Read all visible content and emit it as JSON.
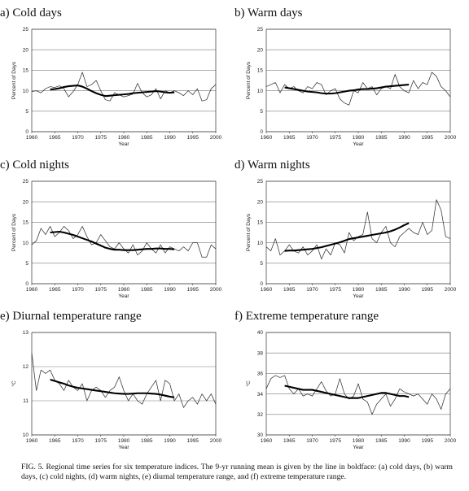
{
  "caption": "FIG. 5. Regional time series for six temperature indices. The 9-yr running mean is given by the line in boldface: (a) cold days, (b) warm days, (c) cold nights, (d) warm nights, (e) diurnal temperature range, and (f) extreme temperature range.",
  "chart_data": [
    {
      "type": "line",
      "title": "a) Cold days",
      "xlabel": "Year",
      "ylabel": "Percent of Days",
      "xlim": [
        1960,
        2000
      ],
      "ylim": [
        0,
        25
      ],
      "xticks": [
        "1960",
        "1965",
        "1970",
        "1975",
        "1980",
        "1985",
        "1990",
        "1995",
        "2000"
      ],
      "yticks": [
        "0",
        "5",
        "10",
        "15",
        "20",
        "25"
      ],
      "grid": true,
      "x_start": 1960,
      "series": [
        {
          "values": [
            9.8,
            10.0,
            9.5,
            10.5,
            11.0,
            10.8,
            11.2,
            10.5,
            8.5,
            9.8,
            11.5,
            14.5,
            11.0,
            11.5,
            12.5,
            10.0,
            7.8,
            7.5,
            9.5,
            9.0,
            8.5,
            8.8,
            9.2,
            11.8,
            9.5,
            8.5,
            9.0,
            10.5,
            8.0,
            10.0,
            9.5,
            10.0,
            9.5,
            8.8,
            10.0,
            9.0,
            10.5,
            7.5,
            7.8,
            10.5,
            11.5
          ]
        },
        {
          "x_start": 1964,
          "values": [
            10.3,
            10.4,
            10.6,
            10.9,
            11.1,
            11.2,
            11.3,
            11.0,
            10.5,
            9.9,
            9.4,
            9.0,
            8.7,
            8.8,
            8.9,
            9.0,
            9.1,
            9.2,
            9.4,
            9.5,
            9.6,
            9.7,
            9.8,
            9.9,
            9.8,
            9.6,
            9.5,
            9.6
          ]
        }
      ]
    },
    {
      "type": "line",
      "title": "b) Warm days",
      "xlabel": "Year",
      "ylabel": "Percent of Days",
      "xlim": [
        1960,
        2000
      ],
      "ylim": [
        0,
        25
      ],
      "xticks": [
        "1960",
        "1965",
        "1970",
        "1975",
        "1980",
        "1985",
        "1990",
        "1995",
        "2000"
      ],
      "yticks": [
        "0",
        "5",
        "10",
        "15",
        "20",
        "25"
      ],
      "grid": true,
      "x_start": 1960,
      "series": [
        {
          "values": [
            11.0,
            11.5,
            12.0,
            9.5,
            11.5,
            10.5,
            11.0,
            10.0,
            9.5,
            11.0,
            10.5,
            12.0,
            11.5,
            9.0,
            10.0,
            10.5,
            8.0,
            7.0,
            6.5,
            10.0,
            9.5,
            12.0,
            10.5,
            11.0,
            9.0,
            10.5,
            11.0,
            10.5,
            14.0,
            11.0,
            10.0,
            9.5,
            12.5,
            10.5,
            12.0,
            11.5,
            14.5,
            13.5,
            11.0,
            10.0,
            8.5
          ]
        },
        {
          "x_start": 1964,
          "values": [
            10.8,
            10.6,
            10.4,
            10.2,
            10.0,
            9.8,
            9.7,
            9.6,
            9.4,
            9.3,
            9.3,
            9.4,
            9.6,
            9.8,
            10.0,
            10.1,
            10.3,
            10.4,
            10.4,
            10.5,
            10.6,
            10.8,
            11.0,
            11.1,
            11.2,
            11.3,
            11.4,
            11.5
          ]
        }
      ]
    },
    {
      "type": "line",
      "title": "c) Cold nights",
      "xlabel": "Year",
      "ylabel": "Percent of Days",
      "xlim": [
        1960,
        2000
      ],
      "ylim": [
        0,
        25
      ],
      "xticks": [
        "1960",
        "1965",
        "1970",
        "1975",
        "1980",
        "1985",
        "1990",
        "1995",
        "2000"
      ],
      "yticks": [
        "0",
        "5",
        "10",
        "15",
        "20",
        "25"
      ],
      "grid": true,
      "x_start": 1960,
      "series": [
        {
          "values": [
            9.5,
            10.5,
            13.5,
            12.0,
            14.0,
            11.5,
            12.5,
            14.0,
            13.0,
            11.0,
            12.0,
            14.0,
            11.5,
            9.5,
            10.0,
            12.0,
            10.5,
            9.0,
            8.5,
            10.0,
            8.5,
            7.5,
            9.5,
            7.0,
            8.0,
            10.0,
            8.5,
            7.5,
            9.5,
            7.5,
            9.0,
            8.5,
            8.0,
            9.0,
            8.0,
            10.0,
            10.0,
            6.5,
            6.5,
            9.5,
            8.5
          ]
        },
        {
          "x_start": 1964,
          "values": [
            12.5,
            12.6,
            12.7,
            12.5,
            12.2,
            11.9,
            11.5,
            11.1,
            10.7,
            10.3,
            9.8,
            9.3,
            8.8,
            8.5,
            8.3,
            8.3,
            8.2,
            8.2,
            8.2,
            8.3,
            8.4,
            8.5,
            8.5,
            8.6,
            8.6,
            8.5,
            8.5,
            8.4
          ]
        }
      ]
    },
    {
      "type": "line",
      "title": "d) Warm nights",
      "xlabel": "Year",
      "ylabel": "Percent of Days",
      "xlim": [
        1960,
        2000
      ],
      "ylim": [
        0,
        25
      ],
      "xticks": [
        "1960",
        "1965",
        "1970",
        "1975",
        "1980",
        "1985",
        "1990",
        "1995",
        "2000"
      ],
      "yticks": [
        "0",
        "5",
        "10",
        "15",
        "20",
        "25"
      ],
      "grid": true,
      "x_start": 1960,
      "series": [
        {
          "values": [
            9.0,
            8.0,
            11.0,
            7.0,
            8.0,
            9.5,
            8.0,
            7.5,
            9.0,
            7.0,
            8.0,
            9.5,
            6.0,
            8.5,
            7.0,
            10.0,
            9.5,
            7.5,
            12.5,
            10.5,
            11.5,
            12.0,
            17.5,
            11.0,
            10.0,
            12.5,
            14.0,
            10.0,
            9.0,
            11.5,
            12.5,
            13.5,
            12.5,
            12.0,
            15.0,
            12.0,
            13.0,
            20.5,
            18.0,
            11.5,
            11.0
          ]
        },
        {
          "x_start": 1964,
          "values": [
            8.0,
            8.1,
            8.1,
            8.2,
            8.3,
            8.4,
            8.5,
            8.7,
            8.9,
            9.2,
            9.5,
            9.8,
            10.1,
            10.5,
            10.9,
            11.1,
            11.3,
            11.5,
            11.7,
            11.9,
            12.1,
            12.3,
            12.5,
            12.8,
            13.2,
            13.7,
            14.3,
            14.8
          ]
        }
      ]
    },
    {
      "type": "line",
      "title": "e) Diurnal temperature range",
      "xlabel": "Year",
      "ylabel": "°C",
      "xlim": [
        1960,
        2000
      ],
      "ylim": [
        10,
        13
      ],
      "xticks": [
        "1960",
        "1965",
        "1970",
        "1975",
        "1980",
        "1985",
        "1990",
        "1995",
        "2000"
      ],
      "yticks": [
        "10",
        "11",
        "12",
        "13"
      ],
      "grid": true,
      "x_start": 1960,
      "series": [
        {
          "values": [
            12.4,
            11.3,
            11.9,
            11.8,
            11.9,
            11.6,
            11.5,
            11.3,
            11.6,
            11.4,
            11.3,
            11.5,
            11.0,
            11.3,
            11.4,
            11.3,
            11.1,
            11.3,
            11.4,
            11.7,
            11.3,
            11.0,
            11.2,
            11.0,
            10.9,
            11.2,
            11.4,
            11.6,
            11.0,
            11.6,
            11.5,
            11.0,
            11.2,
            10.8,
            11.0,
            11.1,
            10.9,
            11.2,
            11.0,
            11.2,
            10.9
          ]
        },
        {
          "x_start": 1964,
          "values": [
            11.62,
            11.58,
            11.54,
            11.5,
            11.45,
            11.41,
            11.38,
            11.36,
            11.34,
            11.32,
            11.3,
            11.28,
            11.26,
            11.24,
            11.22,
            11.21,
            11.2,
            11.2,
            11.21,
            11.22,
            11.22,
            11.22,
            11.21,
            11.2,
            11.18,
            11.15,
            11.12,
            11.1
          ]
        }
      ]
    },
    {
      "type": "line",
      "title": "f) Extreme temperature range",
      "xlabel": "Year",
      "ylabel": "°C",
      "xlim": [
        1960,
        2000
      ],
      "ylim": [
        30,
        40
      ],
      "xticks": [
        "1960",
        "1965",
        "1970",
        "1975",
        "1980",
        "1985",
        "1990",
        "1995",
        "2000"
      ],
      "yticks": [
        "30",
        "32",
        "34",
        "36",
        "38",
        "40"
      ],
      "grid": true,
      "x_start": 1960,
      "series": [
        {
          "values": [
            34.5,
            35.5,
            35.8,
            35.6,
            35.8,
            34.5,
            34.0,
            34.5,
            33.8,
            34.0,
            33.8,
            34.5,
            35.2,
            34.3,
            33.8,
            34.0,
            35.5,
            34.0,
            33.5,
            33.8,
            35.0,
            33.5,
            33.2,
            32.0,
            33.0,
            33.5,
            34.0,
            32.8,
            33.5,
            34.5,
            34.2,
            34.0,
            33.8,
            34.0,
            33.5,
            33.0,
            34.0,
            33.5,
            32.5,
            34.0,
            34.5
          ]
        },
        {
          "x_start": 1964,
          "values": [
            34.8,
            34.7,
            34.6,
            34.5,
            34.4,
            34.4,
            34.4,
            34.3,
            34.2,
            34.1,
            34.0,
            33.9,
            33.8,
            33.7,
            33.6,
            33.6,
            33.6,
            33.7,
            33.8,
            33.9,
            34.0,
            34.1,
            34.1,
            34.0,
            33.9,
            33.8,
            33.8,
            33.7
          ]
        }
      ]
    }
  ]
}
